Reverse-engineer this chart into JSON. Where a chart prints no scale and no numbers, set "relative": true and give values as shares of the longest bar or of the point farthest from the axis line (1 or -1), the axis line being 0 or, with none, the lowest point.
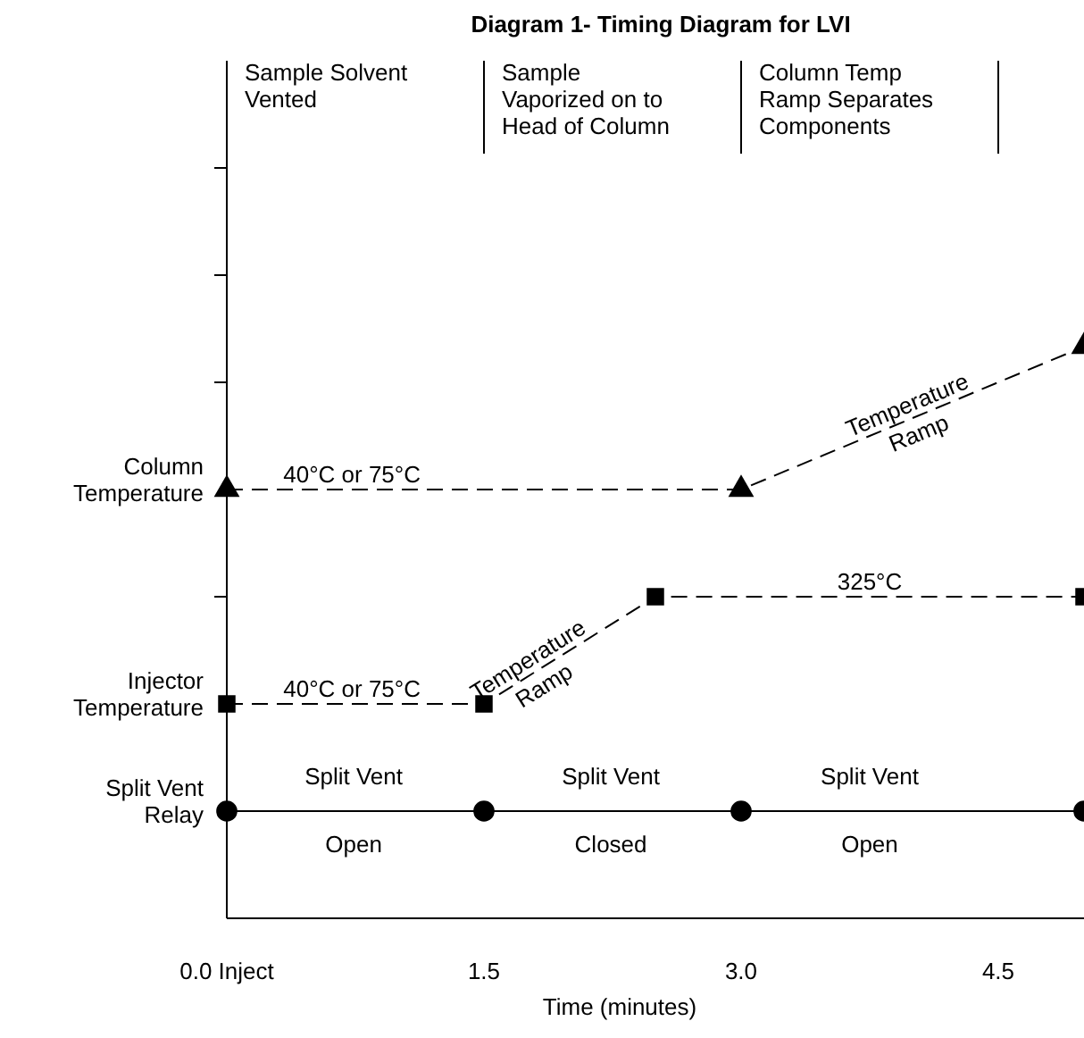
{
  "chart_data": {
    "type": "line",
    "title": "Diagram 1- Timing Diagram for LVI",
    "xlabel": "Time (minutes)",
    "relative": true,
    "xlim": [
      0,
      5
    ],
    "xticks": [
      {
        "value": 0,
        "label": "0.0 Inject"
      },
      {
        "value": 1.5,
        "label": "1.5"
      },
      {
        "value": 3,
        "label": "3.0"
      },
      {
        "value": 4.5,
        "label": "4.5"
      }
    ],
    "grid": false,
    "legend": "left",
    "series": [
      {
        "name": "Column\nTemperature",
        "color": "#000000",
        "x": [
          0,
          3,
          5
        ],
        "values": [
          0.75,
          0.75,
          1
        ],
        "marker": "triangle",
        "line_style": "dashed"
      },
      {
        "name": "Injector\nTemperature",
        "color": "#000000",
        "x": [
          0,
          1.5,
          2.5,
          5
        ],
        "values": [
          0.375,
          0.375,
          0.5625,
          0.5625
        ],
        "marker": "square",
        "line_style": "dashed"
      },
      {
        "name": "Split Vent\nRelay",
        "color": "#000000",
        "x": [
          0,
          1.5,
          3,
          5
        ],
        "values": [
          0.1875,
          0.1875,
          0.1875,
          0.1875
        ],
        "marker": "circle",
        "line_style": "solid"
      }
    ],
    "annotations": [
      "Sample Solvent\nVented",
      "Sample\nVaporized on to\nHead of Column",
      "Column Temp\nRamp Separates\nComponents",
      {
        "text": "40°C or 75°C",
        "x": 0.73,
        "y": 0.75
      },
      {
        "text": "40°C or 75°C",
        "x": 0.73,
        "y": 0.375
      },
      {
        "text": "Temperature\nRamp",
        "x": 1.8,
        "y": 0.43125
      },
      {
        "text": "Temperature\nRamp",
        "x": 4,
        "y": 0.875
      },
      {
        "text": "325°C",
        "x": 3.75,
        "y": 0.5625
      },
      {
        "text": "Split Vent",
        "x": 0.74,
        "y": 0.1875
      },
      {
        "text": "Open",
        "x": 0.74,
        "y": 0.1875
      },
      {
        "text": "Split Vent",
        "x": 2.24,
        "y": 0.1875
      },
      {
        "text": "Closed",
        "x": 2.24,
        "y": 0.1875
      },
      {
        "text": "Split Vent",
        "x": 3.75,
        "y": 0.1875
      },
      {
        "text": "Open",
        "x": 3.75,
        "y": 0.1875
      }
    ]
  }
}
